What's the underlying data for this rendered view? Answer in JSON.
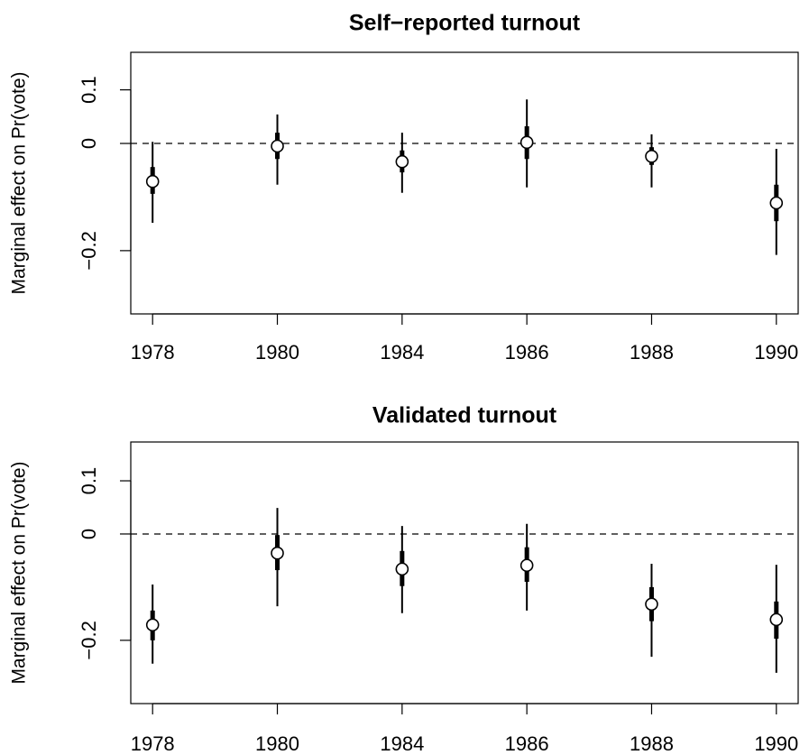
{
  "chart_data": [
    {
      "type": "interval",
      "title": "Self−reported turnout",
      "y_label": "Marginal effect on Pr(vote)",
      "categories": [
        "1978",
        "1980",
        "1984",
        "1986",
        "1988",
        "1990"
      ],
      "values": [
        -0.071,
        -0.005,
        -0.034,
        0.002,
        -0.024,
        -0.111
      ],
      "inner_lower": [
        -0.094,
        -0.029,
        -0.054,
        -0.029,
        -0.04,
        -0.145
      ],
      "inner_upper": [
        -0.044,
        0.02,
        -0.013,
        0.032,
        -0.007,
        -0.077
      ],
      "outer_lower": [
        -0.148,
        -0.077,
        -0.092,
        -0.082,
        -0.082,
        -0.208
      ],
      "outer_upper": [
        0.003,
        0.054,
        0.02,
        0.082,
        0.017,
        -0.01
      ],
      "reference_line": 0,
      "ylim": [
        -0.318,
        0.17
      ],
      "yticks": [
        {
          "value": -0.2,
          "label": "−0.2"
        },
        0,
        0.1
      ]
    },
    {
      "type": "interval",
      "title": "Validated turnout",
      "y_label": "Marginal effect on Pr(vote)",
      "categories": [
        "1978",
        "1980",
        "1984",
        "1986",
        "1988",
        "1990"
      ],
      "values": [
        -0.171,
        -0.036,
        -0.066,
        -0.059,
        -0.132,
        -0.161
      ],
      "inner_lower": [
        -0.2,
        -0.068,
        -0.098,
        -0.09,
        -0.164,
        -0.197
      ],
      "inner_upper": [
        -0.144,
        -0.002,
        -0.032,
        -0.025,
        -0.1,
        -0.127
      ],
      "outer_lower": [
        -0.244,
        -0.136,
        -0.149,
        -0.144,
        -0.231,
        -0.261
      ],
      "outer_upper": [
        -0.095,
        0.049,
        0.015,
        0.019,
        -0.056,
        -0.058
      ],
      "reference_line": 0,
      "ylim": [
        -0.319,
        0.173
      ],
      "yticks": [
        {
          "value": -0.2,
          "label": "−0.2"
        },
        0,
        0.1
      ]
    }
  ]
}
